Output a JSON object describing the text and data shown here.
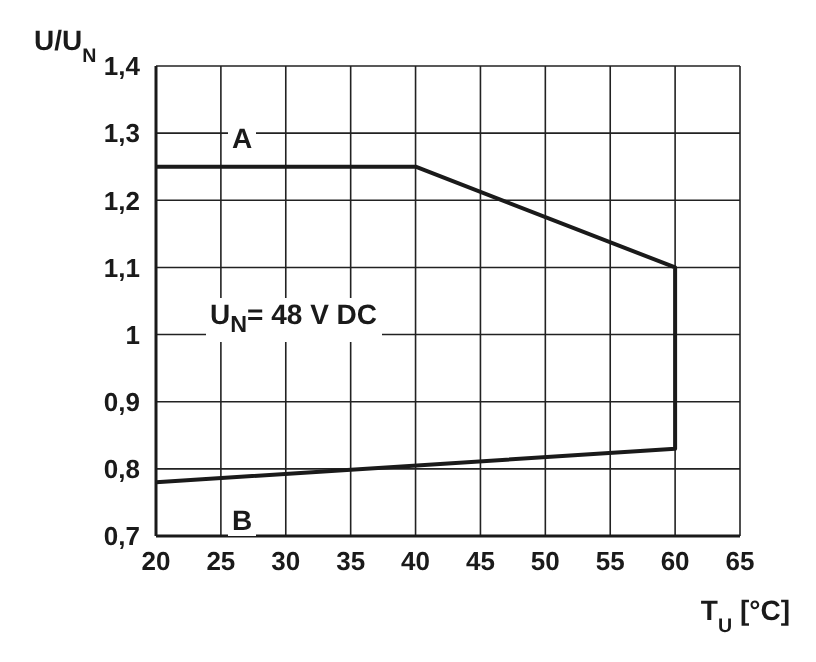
{
  "chart_data": {
    "type": "line",
    "xlabel": "T$_{U}$ [°C]",
    "ylabel": "U/U$_{N}$",
    "x": [
      20,
      40,
      60,
      60,
      20
    ],
    "series": [
      {
        "color": "#1a1a1a",
        "values": [
          1.25,
          1.25,
          1.1,
          0.83,
          0.78
        ]
      }
    ],
    "xlim": [
      20,
      65
    ],
    "xticks": [
      20,
      25,
      30,
      35,
      40,
      45,
      50,
      55,
      60,
      65
    ],
    "ylim": [
      0.7,
      1.4
    ],
    "yticks": [
      {
        "value": 0.7,
        "label": "0,7"
      },
      {
        "value": 0.8,
        "label": "0,8"
      },
      {
        "value": 0.9,
        "label": "0,9"
      },
      1,
      {
        "value": 1.1,
        "label": "1,1"
      },
      {
        "value": 1.2,
        "label": "1,2"
      },
      {
        "value": 1.3,
        "label": "1,3"
      },
      {
        "value": 1.4,
        "label": "1,4"
      }
    ],
    "annotations": [
      "A",
      "B",
      "U$_{N}$= 48 V DC"
    ],
    "grid": true,
    "marker": "none",
    "line_style": "solid"
  }
}
